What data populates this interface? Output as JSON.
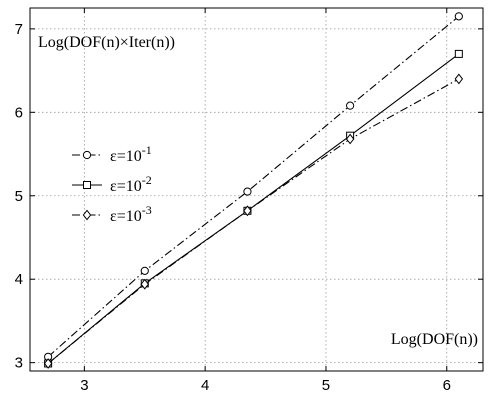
{
  "chart_data": {
    "type": "line",
    "title": "",
    "xlabel": "Log(DOF(n))",
    "ylabel": "Log(DOF(n)×Iter(n))",
    "xlim": [
      2.55,
      6.3
    ],
    "ylim": [
      2.9,
      7.25
    ],
    "xticks": [
      "3",
      "4",
      "5",
      "6"
    ],
    "yticks": [
      "3",
      "4",
      "5",
      "6",
      "7"
    ],
    "grid": true,
    "legend_position": "left",
    "series": [
      {
        "name": "ε=10-1",
        "legend_base": "ε=10",
        "legend_exp": "-1",
        "marker": "circle",
        "line_style": "dash-dot",
        "x": [
          2.7,
          3.5,
          4.35,
          5.2,
          6.1
        ],
        "y": [
          3.07,
          4.1,
          5.05,
          6.08,
          7.15
        ]
      },
      {
        "name": "ε=10-2",
        "legend_base": "ε=10",
        "legend_exp": "-2",
        "marker": "square",
        "line_style": "solid",
        "x": [
          2.7,
          3.5,
          4.35,
          5.2,
          6.1
        ],
        "y": [
          2.99,
          3.95,
          4.82,
          5.72,
          6.7
        ]
      },
      {
        "name": "ε=10-3",
        "legend_base": "ε=10",
        "legend_exp": "-3",
        "marker": "diamond",
        "line_style": "dash-dot",
        "x": [
          2.7,
          3.5,
          4.35,
          5.2,
          6.1
        ],
        "y": [
          2.99,
          3.94,
          4.82,
          5.68,
          6.4
        ]
      }
    ]
  }
}
